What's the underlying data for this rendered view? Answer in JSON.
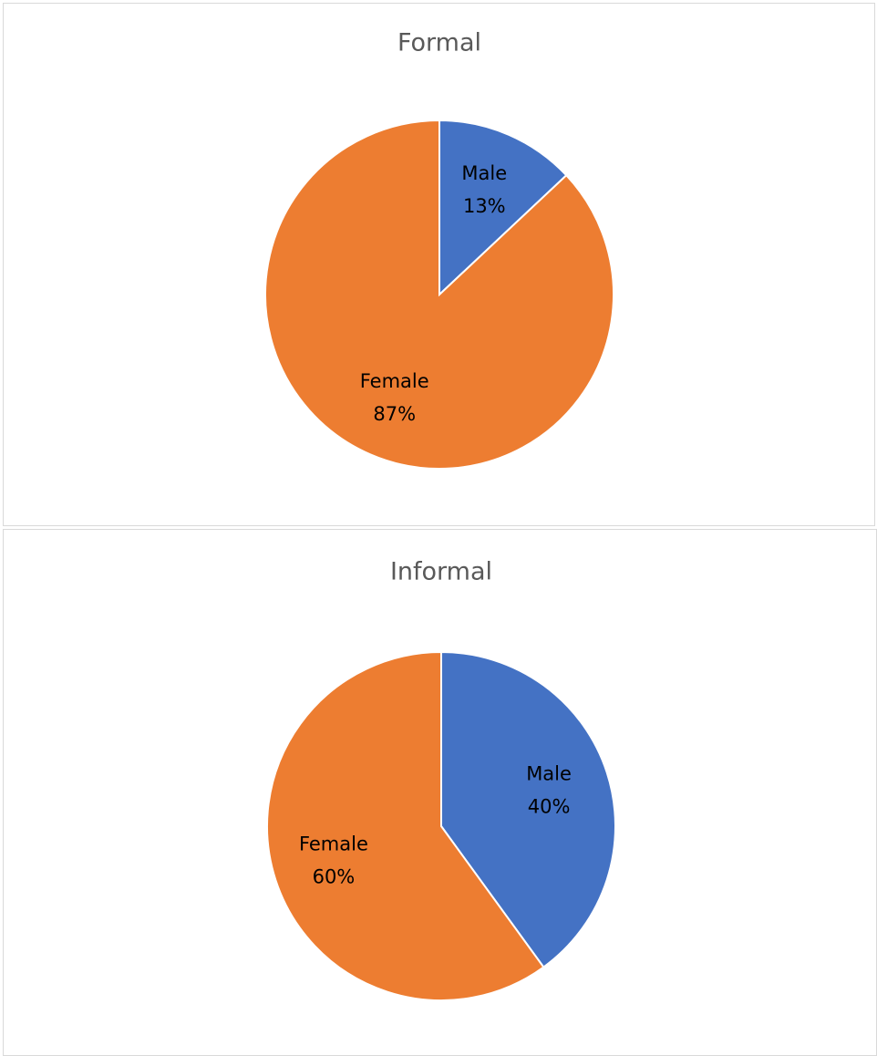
{
  "chart_data": [
    {
      "type": "pie",
      "title": "Formal",
      "categories": [
        "Male",
        "Female"
      ],
      "values": [
        13,
        87
      ],
      "value_labels": [
        "13%",
        "87%"
      ],
      "colors": [
        "#4472c4",
        "#ed7d31"
      ]
    },
    {
      "type": "pie",
      "title": "Informal",
      "categories": [
        "Male",
        "Female"
      ],
      "values": [
        40,
        60
      ],
      "value_labels": [
        "40%",
        "60%"
      ],
      "colors": [
        "#4472c4",
        "#ed7d31"
      ]
    }
  ]
}
